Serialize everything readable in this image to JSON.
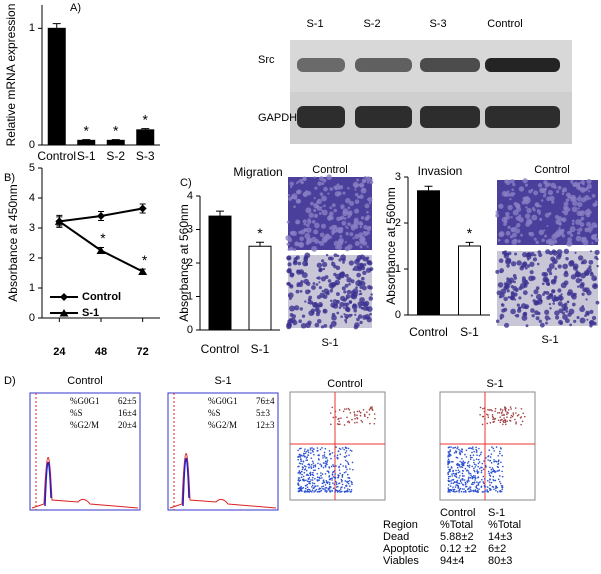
{
  "panel_labels": {
    "a": "A)",
    "b": "B)",
    "c": "C)",
    "d": "D)"
  },
  "chart_data": [
    {
      "type": "bar",
      "ylabel": "Relative mRNA expression",
      "categories": [
        "Control",
        "S-1",
        "S-2",
        "S-3"
      ],
      "values": [
        1,
        0.04,
        0.04,
        0.13
      ],
      "errors": [
        0.04,
        0.006,
        0.006,
        0.01
      ],
      "significance": [
        null,
        "*",
        "*",
        "*"
      ],
      "colors": [
        "#000000",
        "#000000",
        "#000000",
        "#000000"
      ],
      "ylim": [
        0,
        1.2
      ],
      "yticks": [
        0,
        1
      ]
    },
    {
      "type": "line",
      "ylabel": "Absorbance at 450nm",
      "x": [
        24,
        48,
        72
      ],
      "xlim": [
        14,
        82
      ],
      "xticks": [
        24,
        48,
        72
      ],
      "ylim": [
        0,
        5
      ],
      "yticks": [
        0,
        1,
        2,
        3,
        4,
        5
      ],
      "legend": "lower left",
      "series": [
        {
          "name": "Control",
          "color": "#000000",
          "marker": "diamond",
          "values": [
            3.22,
            3.4,
            3.65
          ],
          "errors": [
            0.15,
            0.15,
            0.15
          ],
          "significance": [
            null,
            null,
            null
          ]
        },
        {
          "name": "S-1",
          "color": "#000000",
          "marker": "triangle",
          "values": [
            3.22,
            2.25,
            1.55
          ],
          "errors": [
            0.2,
            0.1,
            0.08
          ],
          "significance": [
            null,
            "*",
            "*"
          ]
        }
      ]
    },
    {
      "type": "bar",
      "title": "Migration",
      "ylabel": "Absorbance at 560nm",
      "categories": [
        "Control",
        "S-1"
      ],
      "values": [
        3.4,
        2.5
      ],
      "errors": [
        0.15,
        0.12
      ],
      "significance": [
        null,
        "*"
      ],
      "colors": [
        "#000000",
        "#ffffff"
      ],
      "ylim": [
        0,
        4
      ],
      "yticks": [
        0,
        1,
        2,
        3,
        4
      ]
    },
    {
      "type": "bar",
      "title": "Invasion",
      "ylabel": "Absorbance at 560nm",
      "categories": [
        "Control",
        "S-1"
      ],
      "values": [
        2.7,
        1.5
      ],
      "errors": [
        0.1,
        0.08
      ],
      "significance": [
        null,
        "*"
      ],
      "colors": [
        "#000000",
        "#ffffff"
      ],
      "ylim": [
        0,
        3
      ],
      "yticks": [
        0,
        1,
        2,
        3
      ]
    }
  ],
  "blot": {
    "lanes": [
      "S-1",
      "S-2",
      "S-3",
      "Control"
    ],
    "rows": [
      "Src",
      "GAPDH"
    ]
  },
  "micrographs": {
    "migration": [
      "Control",
      "S-1"
    ],
    "invasion": [
      "Control",
      "S-1"
    ]
  },
  "cell_cycle": [
    {
      "title": "Control",
      "rows": [
        [
          "%G0G1",
          "62±5"
        ],
        [
          "%S",
          "16±4"
        ],
        [
          "%G2/M",
          "20±4"
        ]
      ]
    },
    {
      "title": "S-1",
      "rows": [
        [
          "%G0G1",
          "76±4"
        ],
        [
          "%S",
          "5±3"
        ],
        [
          "%G2/M",
          "12±3"
        ]
      ]
    }
  ],
  "apoptosis": {
    "plots": [
      "Control",
      "S-1"
    ],
    "table": {
      "columns": [
        "Control",
        "S-1"
      ],
      "rows": [
        [
          "Region",
          "%Total",
          "%Total"
        ],
        [
          "Dead",
          "5.88±2",
          "14±3"
        ],
        [
          "Apoptotic",
          "0.12 ±2",
          "6±2"
        ],
        [
          "Viables",
          "94±4",
          "80±3"
        ]
      ]
    }
  }
}
